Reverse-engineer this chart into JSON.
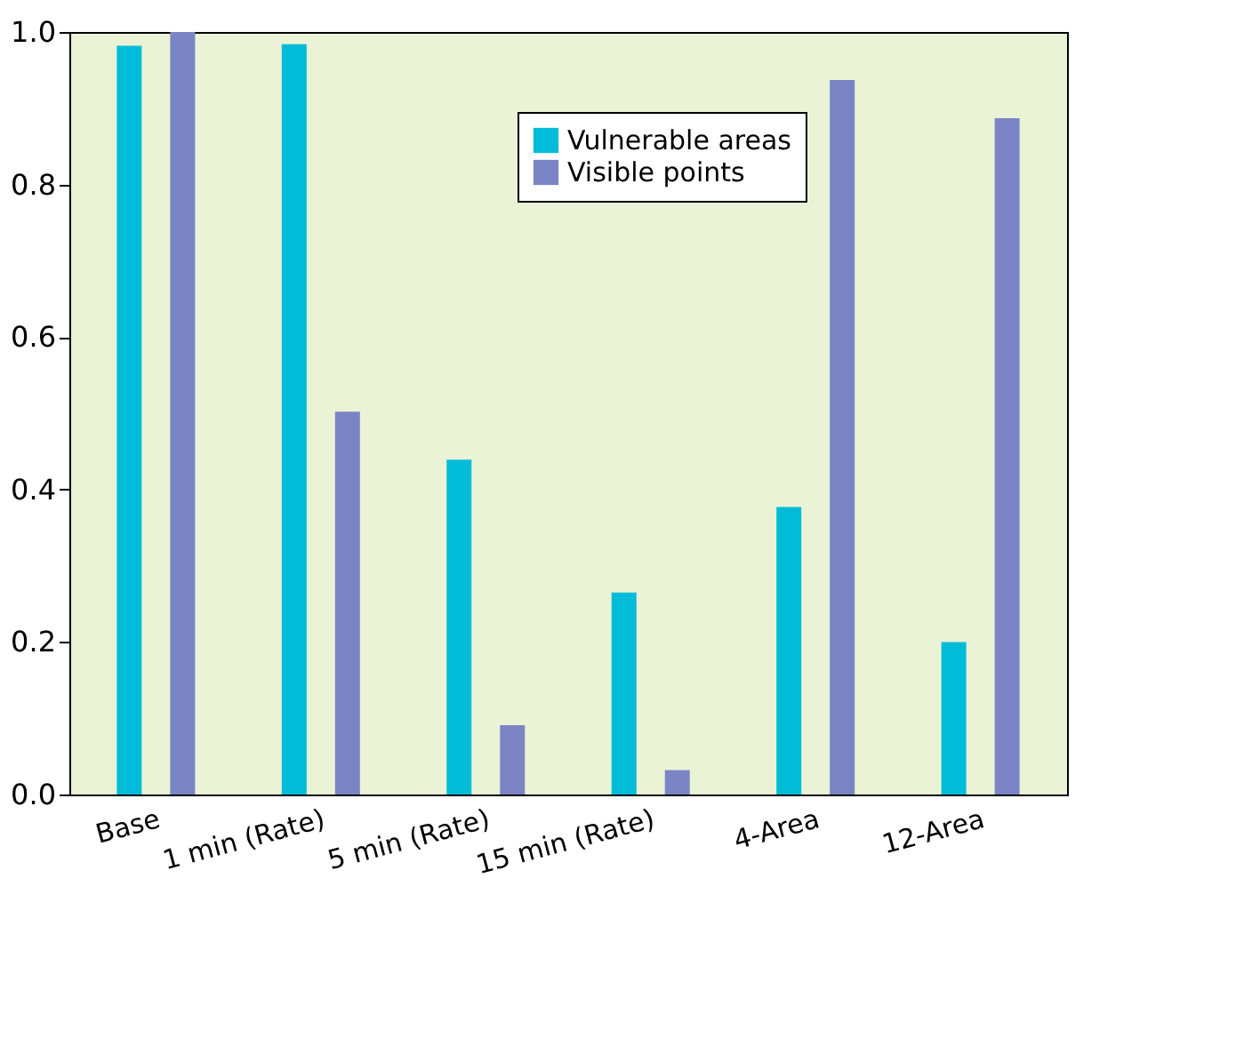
{
  "chart_data": {
    "type": "bar",
    "categories": [
      "Base",
      "1 min (Rate)",
      "5 min (Rate)",
      "15 min (Rate)",
      "4-Area",
      "12-Area"
    ],
    "series": [
      {
        "name": "Vulnerable areas",
        "color": "#00bcd8",
        "values": [
          0.982,
          0.984,
          0.439,
          0.265,
          0.377,
          0.2
        ]
      },
      {
        "name": "Visible points",
        "color": "#7b84c4",
        "values": [
          1.0,
          0.502,
          0.091,
          0.032,
          0.937,
          0.887
        ]
      }
    ],
    "ylim": [
      0,
      1
    ],
    "yticks": [
      {
        "value": 0,
        "label": "0.0"
      },
      0.2,
      0.4,
      0.6,
      0.8,
      {
        "value": 1,
        "label": "1.0"
      }
    ],
    "grid": false,
    "legend": "top right"
  }
}
